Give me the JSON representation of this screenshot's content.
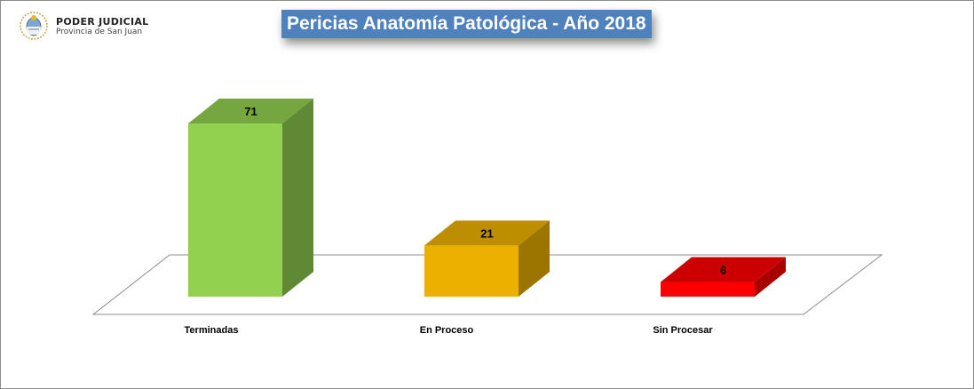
{
  "header": {
    "org_name": "PODER JUDICIAL",
    "org_sub": "Provincia de San Juan",
    "emblem_icon": "coat-of-arms-icon"
  },
  "chart_data": {
    "type": "bar",
    "title": "Pericias Anatomía Patológica - Año 2018",
    "categories": [
      "Terminadas",
      "En Proceso",
      "Sin Procesar"
    ],
    "values": [
      71,
      21,
      6
    ],
    "data_labels": [
      "71",
      "21",
      "6"
    ],
    "colors": [
      "#92d050",
      "#ecb100",
      "#ff0000"
    ],
    "xlabel": "",
    "ylabel": "",
    "ylim": [
      0,
      71
    ],
    "grid": false,
    "legend": "none",
    "style": "3d"
  }
}
